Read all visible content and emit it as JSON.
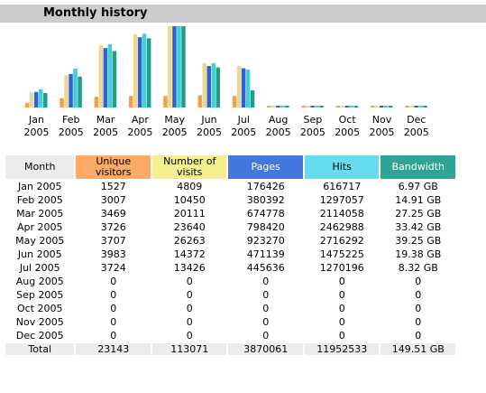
{
  "section": {
    "title": "Monthly history"
  },
  "colors": {
    "visitors": "#f0a050",
    "visits": "#e8d890",
    "pages": "#3360cc",
    "hits": "#40d0d8",
    "bandwidth": "#1f9e88"
  },
  "chart_data": {
    "type": "bar",
    "categories": [
      [
        "Jan",
        "2005"
      ],
      [
        "Feb",
        "2005"
      ],
      [
        "Mar",
        "2005"
      ],
      [
        "Apr",
        "2005"
      ],
      [
        "May",
        "2005"
      ],
      [
        "Jun",
        "2005"
      ],
      [
        "Jul",
        "2005"
      ],
      [
        "Aug",
        "2005"
      ],
      [
        "Sep",
        "2005"
      ],
      [
        "Oct",
        "2005"
      ],
      [
        "Nov",
        "2005"
      ],
      [
        "Dec",
        "2005"
      ]
    ],
    "series": [
      {
        "name": "Unique visitors",
        "values": [
          1527,
          3007,
          3469,
          3726,
          3707,
          3983,
          3724,
          0,
          0,
          0,
          0,
          0
        ]
      },
      {
        "name": "Number of visits",
        "values": [
          4809,
          10450,
          20111,
          23640,
          26263,
          14372,
          13426,
          0,
          0,
          0,
          0,
          0
        ]
      },
      {
        "name": "Pages",
        "values": [
          176426,
          380392,
          674778,
          798420,
          923270,
          471139,
          445636,
          0,
          0,
          0,
          0,
          0
        ]
      },
      {
        "name": "Hits",
        "values": [
          616717,
          1297057,
          2114058,
          2462988,
          2716292,
          1475225,
          1270196,
          0,
          0,
          0,
          0,
          0
        ]
      },
      {
        "name": "Bandwidth",
        "values": [
          6.97,
          14.91,
          27.25,
          33.42,
          39.25,
          19.38,
          8.32,
          0,
          0,
          0,
          0,
          0
        ]
      }
    ]
  },
  "table": {
    "headers": {
      "month": "Month",
      "visitors": [
        "Unique",
        "visitors"
      ],
      "visits": [
        "Number of",
        "visits"
      ],
      "pages": "Pages",
      "hits": "Hits",
      "bandwidth": "Bandwidth"
    },
    "rows": [
      [
        "Jan 2005",
        "1527",
        "4809",
        "176426",
        "616717",
        "6.97 GB"
      ],
      [
        "Feb 2005",
        "3007",
        "10450",
        "380392",
        "1297057",
        "14.91 GB"
      ],
      [
        "Mar 2005",
        "3469",
        "20111",
        "674778",
        "2114058",
        "27.25 GB"
      ],
      [
        "Apr 2005",
        "3726",
        "23640",
        "798420",
        "2462988",
        "33.42 GB"
      ],
      [
        "May 2005",
        "3707",
        "26263",
        "923270",
        "2716292",
        "39.25 GB"
      ],
      [
        "Jun 2005",
        "3983",
        "14372",
        "471139",
        "1475225",
        "19.38 GB"
      ],
      [
        "Jul 2005",
        "3724",
        "13426",
        "445636",
        "1270196",
        "8.32 GB"
      ],
      [
        "Aug 2005",
        "0",
        "0",
        "0",
        "0",
        "0"
      ],
      [
        "Sep 2005",
        "0",
        "0",
        "0",
        "0",
        "0"
      ],
      [
        "Oct 2005",
        "0",
        "0",
        "0",
        "0",
        "0"
      ],
      [
        "Nov 2005",
        "0",
        "0",
        "0",
        "0",
        "0"
      ],
      [
        "Dec 2005",
        "0",
        "0",
        "0",
        "0",
        "0"
      ]
    ],
    "total": [
      "Total",
      "23143",
      "113071",
      "3870061",
      "11952533",
      "149.51 GB"
    ]
  }
}
